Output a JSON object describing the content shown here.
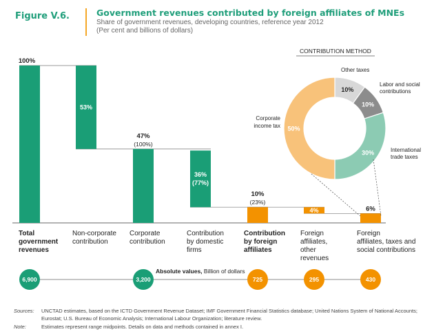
{
  "figure": {
    "label": "Figure V.6.",
    "title": "Government revenues contributed by foreign affiliates of MNEs",
    "subtitle_line1": "Share of government revenues, developing countries, reference year 2012",
    "subtitle_line2": "(Per cent and billions of dollars)"
  },
  "colors": {
    "green": "#1a9e76",
    "orange": "#f39200",
    "light_orange": "#f8c27a",
    "grey_light": "#d8d8d8",
    "grey_dark": "#8c8c8c",
    "mint": "#8ccbb3",
    "title_green": "#1f9e7a"
  },
  "chart_data": [
    {
      "type": "bar",
      "subtype": "waterfall",
      "unit": "per cent of government revenues",
      "ylim": [
        0,
        100
      ],
      "bars": [
        {
          "category": [
            "Total",
            "government",
            "revenues"
          ],
          "category_bold": true,
          "value": 100,
          "base": 0,
          "label": "100%",
          "sublabel": "",
          "label_inside": false,
          "color": "green",
          "absolute_value": "6,900"
        },
        {
          "category": [
            "Non-corporate",
            "contribution"
          ],
          "category_bold": false,
          "value": 53,
          "base": 47,
          "label": "53%",
          "sublabel": "",
          "label_inside": true,
          "color": "green",
          "absolute_value": ""
        },
        {
          "category": [
            "Corporate",
            "contribution"
          ],
          "category_bold": false,
          "value": 47,
          "base": 0,
          "label": "47%",
          "sublabel": "(100%)",
          "label_inside": false,
          "color": "green",
          "absolute_value": "3,200"
        },
        {
          "category": [
            "Contribution",
            "by domestic",
            "firms"
          ],
          "category_bold": false,
          "value": 36,
          "base": 10,
          "label": "36%",
          "sublabel": "(77%)",
          "label_inside": true,
          "color": "green",
          "absolute_value": ""
        },
        {
          "category": [
            "Contribution",
            "by foreign",
            "affiliates"
          ],
          "category_bold": true,
          "value": 10,
          "base": 0,
          "label": "10%",
          "sublabel": "(23%)",
          "label_inside": false,
          "color": "orange",
          "absolute_value": "725"
        },
        {
          "category": [
            "Foreign",
            "affiliates,",
            "other",
            "revenues"
          ],
          "category_bold": false,
          "value": 4,
          "base": 6,
          "label": "4%",
          "sublabel": "",
          "label_inside": true,
          "color": "orange",
          "absolute_value": "295"
        },
        {
          "category": [
            "Foreign",
            "affiliates, taxes and",
            "social contributions"
          ],
          "category_bold": false,
          "value": 6,
          "base": 0,
          "label": "6%",
          "sublabel": "",
          "label_inside": false,
          "color": "orange",
          "absolute_value": "430"
        }
      ],
      "absolute_values_caption_bold": "Absolute values,",
      "absolute_values_caption_rest": " Billion of dollars"
    },
    {
      "type": "pie",
      "subtype": "donut",
      "title": "CONTRIBUTION METHOD",
      "slices": [
        {
          "name": "Other taxes",
          "value": 10,
          "label": "10%",
          "color": "grey_light"
        },
        {
          "name": "Labor and social contributions",
          "value": 10,
          "label": "10%",
          "color": "grey_dark"
        },
        {
          "name": "International trade taxes",
          "value": 30,
          "label": "30%",
          "color": "mint"
        },
        {
          "name": "Corporate income tax",
          "value": 50,
          "label": "50%",
          "color": "light_orange"
        }
      ],
      "callouts": {
        "other": [
          "Other taxes"
        ],
        "labor": [
          "Labor and social",
          "contributions"
        ],
        "trade": [
          "International",
          "trade taxes"
        ],
        "corporate": [
          "Corporate",
          "income tax"
        ]
      }
    }
  ],
  "footer": {
    "sources_key": "Sources:",
    "sources_line1": "UNCTAD estimates, based on the ICTD Government Revenue Dataset; IMF Government Financial Statistics database; United Nations System of National Accounts;",
    "sources_line2": "Eurostat; U.S. Bureau of Economic Analysis; International Labour Organization; literature review.",
    "note_key": "Note:",
    "note_text": "Estimates represent range midpoints. Details on data and methods contained in annex I."
  }
}
